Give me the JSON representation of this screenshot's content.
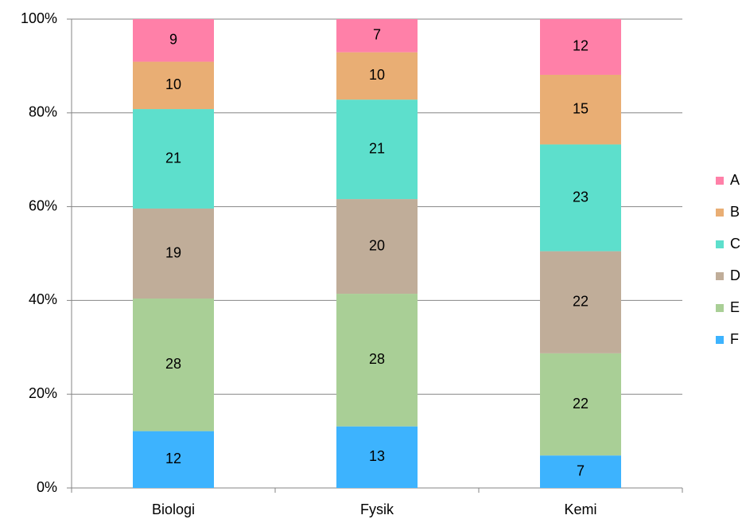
{
  "chart_data": {
    "type": "bar",
    "stacking": "percent",
    "categories": [
      "Biologi",
      "Fysik",
      "Kemi"
    ],
    "series": [
      {
        "name": "A",
        "color": "#ff80a8",
        "values": [
          9,
          7,
          12
        ]
      },
      {
        "name": "B",
        "color": "#e9ae74",
        "values": [
          10,
          10,
          15
        ]
      },
      {
        "name": "C",
        "color": "#5ddfcc",
        "values": [
          21,
          21,
          23
        ]
      },
      {
        "name": "D",
        "color": "#c0ad99",
        "values": [
          19,
          20,
          22
        ]
      },
      {
        "name": "E",
        "color": "#a9cf96",
        "values": [
          28,
          28,
          22
        ]
      },
      {
        "name": "F",
        "color": "#3db3fe",
        "values": [
          12,
          13,
          7
        ]
      }
    ],
    "ylim": [
      0,
      100
    ],
    "yticks": [
      {
        "value": 0,
        "label": "0%"
      },
      {
        "value": 20,
        "label": "20%"
      },
      {
        "value": 40,
        "label": "40%"
      },
      {
        "value": 60,
        "label": "60%"
      },
      {
        "value": 80,
        "label": "80%"
      },
      {
        "value": 100,
        "label": "100%"
      }
    ],
    "grid": true,
    "legend": "right"
  }
}
